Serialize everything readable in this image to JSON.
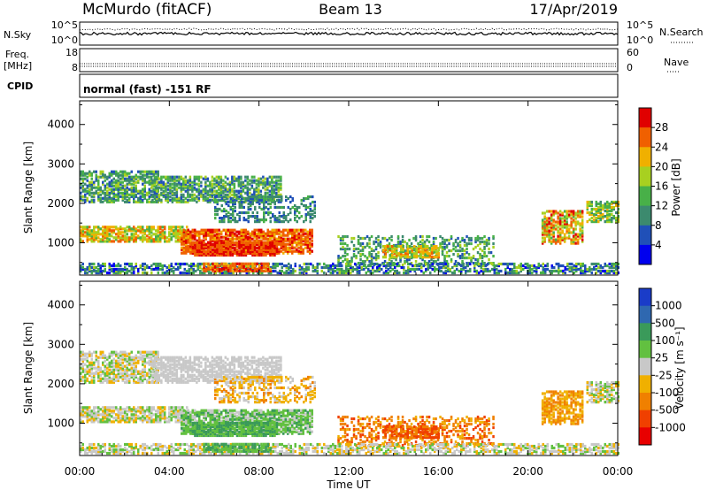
{
  "header": {
    "station": "McMurdo (fitACF)",
    "beam": "Beam 13",
    "date": "17/Apr/2019"
  },
  "status_panels": {
    "nsky_label": "N.Sky",
    "nsearch_label": "N.Search",
    "sky_scale": [
      "10^5",
      "10^0"
    ],
    "freq_label": [
      "Freq.",
      "[MHz]"
    ],
    "freq_scale": [
      "18",
      "8"
    ],
    "nave_label": "Nave",
    "nave_scale": [
      "60",
      "0"
    ],
    "cpid_label": "CPID",
    "cpid_text": "normal (fast) -151 RF"
  },
  "chart_data": [
    {
      "type": "heatmap",
      "name": "power",
      "ylabel": "Slant Range [km]",
      "xlabel": "",
      "xlim": [
        0,
        24
      ],
      "ylim": [
        180,
        4600
      ],
      "y_ticks": [
        1000,
        2000,
        3000,
        4000
      ],
      "colorbar": {
        "label": "Power [dB]",
        "ticks": [
          "4",
          "8",
          "12",
          "16",
          "20",
          "24",
          "28"
        ],
        "colors": [
          "#0000ee",
          "#2050b8",
          "#3c8a6e",
          "#48b048",
          "#a8d020",
          "#f0b000",
          "#f06000",
          "#e00000"
        ]
      }
    },
    {
      "type": "heatmap",
      "name": "velocity",
      "ylabel": "Slant Range [km]",
      "xlabel": "Time UT",
      "xlim": [
        0,
        24
      ],
      "ylim": [
        180,
        4600
      ],
      "y_ticks": [
        1000,
        2000,
        3000,
        4000
      ],
      "x_ticks": [
        "00:00",
        "04:00",
        "08:00",
        "12:00",
        "16:00",
        "20:00",
        "00:00"
      ],
      "colorbar": {
        "label": "Velocity [m s⁻¹]",
        "ticks": [
          "1000",
          "500",
          "100",
          "25",
          "-25",
          "-100",
          "-500",
          "-1000"
        ],
        "colors": [
          "#1a3cc8",
          "#2f68b0",
          "#3a9a5a",
          "#62c040",
          "#c8c8c8",
          "#f0b000",
          "#f08000",
          "#f04000",
          "#e80000"
        ]
      }
    }
  ]
}
